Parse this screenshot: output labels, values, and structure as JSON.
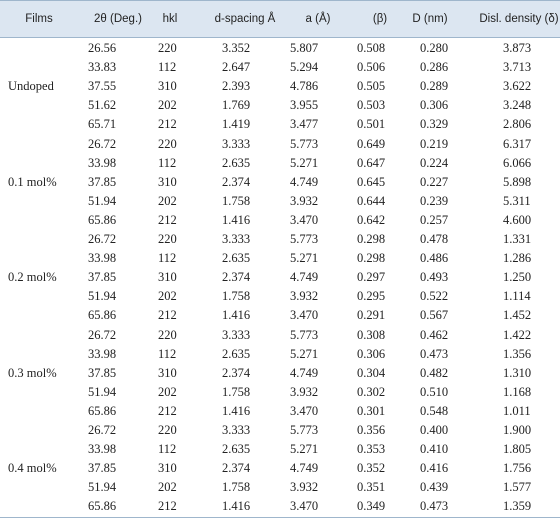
{
  "table": {
    "header": [
      "Films",
      "2θ (Deg.)",
      "hkl",
      "d-spacing Å",
      "a (Å)",
      "(β)",
      "D (nm)",
      "Disl. density (δ)"
    ],
    "groups": [
      {
        "label": "Undoped",
        "rows": [
          [
            "26.56",
            "220",
            "3.352",
            "5.807",
            "0.508",
            "0.280",
            "3.873"
          ],
          [
            "33.83",
            "112",
            "2.647",
            "5.294",
            "0.506",
            "0.286",
            "3.713"
          ],
          [
            "37.55",
            "310",
            "2.393",
            "4.786",
            "0.505",
            "0.289",
            "3.622"
          ],
          [
            "51.62",
            "202",
            "1.769",
            "3.955",
            "0.503",
            "0.306",
            "3.248"
          ],
          [
            "65.71",
            "212",
            "1.419",
            "3.477",
            "0.501",
            "0.329",
            "2.806"
          ]
        ]
      },
      {
        "label": "0.1 mol%",
        "rows": [
          [
            "26.72",
            "220",
            "3.333",
            "5.773",
            "0.649",
            "0.219",
            "6.317"
          ],
          [
            "33.98",
            "112",
            "2.635",
            "5.271",
            "0.647",
            "0.224",
            "6.066"
          ],
          [
            "37.85",
            "310",
            "2.374",
            "4.749",
            "0.645",
            "0.227",
            "5.898"
          ],
          [
            "51.94",
            "202",
            "1.758",
            "3.932",
            "0.644",
            "0.239",
            "5.311"
          ],
          [
            "65.86",
            "212",
            "1.416",
            "3.470",
            "0.642",
            "0.257",
            "4.600"
          ]
        ]
      },
      {
        "label": "0.2 mol%",
        "rows": [
          [
            "26.72",
            "220",
            "3.333",
            "5.773",
            "0.298",
            "0.478",
            "1.331"
          ],
          [
            "33.98",
            "112",
            "2.635",
            "5.271",
            "0.298",
            "0.486",
            "1.286"
          ],
          [
            "37.85",
            "310",
            "2.374",
            "4.749",
            "0.297",
            "0.493",
            "1.250"
          ],
          [
            "51.94",
            "202",
            "1.758",
            "3.932",
            "0.295",
            "0.522",
            "1.114"
          ],
          [
            "65.86",
            "212",
            "1.416",
            "3.470",
            "0.291",
            "0.567",
            "1.452"
          ]
        ]
      },
      {
        "label": "0.3 mol%",
        "rows": [
          [
            "26.72",
            "220",
            "3.333",
            "5.773",
            "0.308",
            "0.462",
            "1.422"
          ],
          [
            "33.98",
            "112",
            "2.635",
            "5.271",
            "0.306",
            "0.473",
            "1.356"
          ],
          [
            "37.85",
            "310",
            "2.374",
            "4.749",
            "0.304",
            "0.482",
            "1.310"
          ],
          [
            "51.94",
            "202",
            "1.758",
            "3.932",
            "0.302",
            "0.510",
            "1.168"
          ],
          [
            "65.86",
            "212",
            "1.416",
            "3.470",
            "0.301",
            "0.548",
            "1.011"
          ]
        ]
      },
      {
        "label": "0.4 mol%",
        "rows": [
          [
            "26.72",
            "220",
            "3.333",
            "5.773",
            "0.356",
            "0.400",
            "1.900"
          ],
          [
            "33.98",
            "112",
            "2.635",
            "5.271",
            "0.353",
            "0.410",
            "1.805"
          ],
          [
            "37.85",
            "310",
            "2.374",
            "4.749",
            "0.352",
            "0.416",
            "1.756"
          ],
          [
            "51.94",
            "202",
            "1.758",
            "3.932",
            "0.351",
            "0.439",
            "1.577"
          ],
          [
            "65.86",
            "212",
            "1.416",
            "3.470",
            "0.349",
            "0.473",
            "1.359"
          ]
        ]
      }
    ]
  }
}
